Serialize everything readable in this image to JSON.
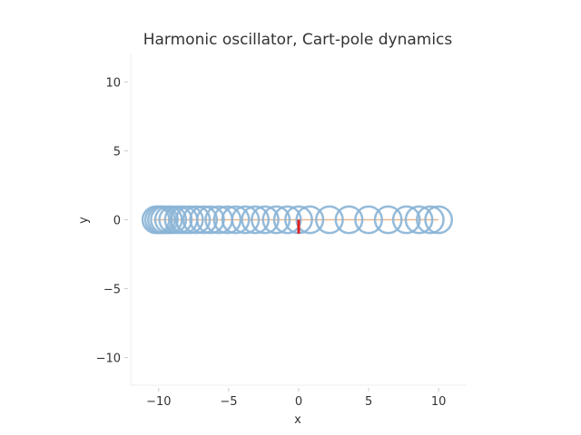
{
  "chart_data": {
    "type": "line",
    "title": "Harmonic oscillator, Cart-pole dynamics",
    "xlabel": "x",
    "ylabel": "y",
    "xlim": [
      -12,
      12
    ],
    "ylim": [
      -12,
      12
    ],
    "xticks": [
      -10,
      -5,
      0,
      5,
      10
    ],
    "xtick_labels": [
      "−10",
      "−5",
      "0",
      "5",
      "10"
    ],
    "yticks": [
      -10,
      -5,
      0,
      5,
      10
    ],
    "ytick_labels": [
      "−10",
      "−5",
      "0",
      "5",
      "10"
    ],
    "grid": false,
    "series": [
      {
        "type": "line",
        "color": "#e8b88f",
        "x": [
          -10.4,
          10.0
        ],
        "y": [
          0,
          0
        ]
      },
      {
        "type": "circles",
        "color": "#8ab4d6",
        "radius": 0.95,
        "centers_x": [
          -10.2,
          -10.0,
          -9.8,
          -9.6,
          -9.3,
          -9.0,
          -8.6,
          -8.2,
          -7.8,
          -7.3,
          -6.8,
          -6.3,
          -5.7,
          -5.1,
          -4.5,
          -3.8,
          -3.1,
          -2.4,
          -1.6,
          -0.8,
          0.0,
          0.8,
          2.2,
          3.6,
          5.0,
          6.4,
          7.7,
          8.6,
          9.4,
          10.0
        ],
        "centers_y": [
          0,
          0,
          0,
          0,
          0,
          0,
          0,
          0,
          0,
          0,
          0,
          0,
          0,
          0,
          0,
          0,
          0,
          0,
          0,
          0,
          0,
          0,
          0,
          0,
          0,
          0,
          0,
          0,
          0,
          0
        ]
      },
      {
        "type": "pole",
        "color": "#dd1f1f",
        "x": [
          0.0,
          0.0
        ],
        "y": [
          0.0,
          -1.0
        ]
      }
    ]
  }
}
